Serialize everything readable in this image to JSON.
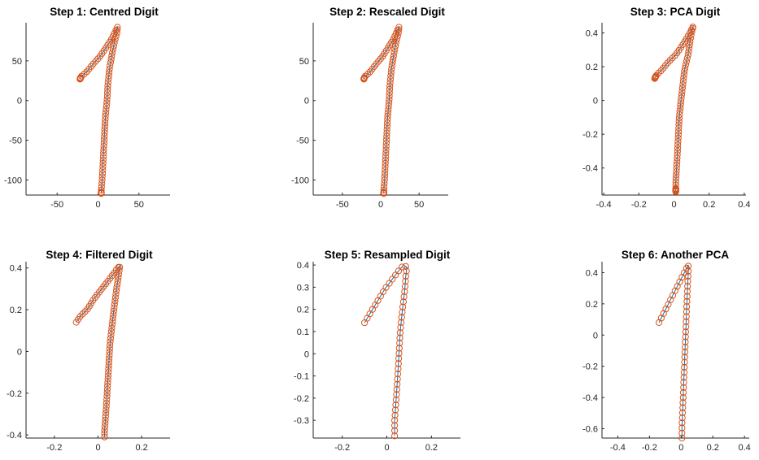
{
  "colors": {
    "marker": "#d95319",
    "line": "#0072bd",
    "axis": "#262626"
  },
  "chart_data": [
    {
      "type": "scatter",
      "title": "Step 1: Centred   Digit",
      "xlim": [
        -88,
        88
      ],
      "ylim": [
        -119,
        98
      ],
      "xticks": [
        -50,
        0,
        50
      ],
      "xtick_labels": [
        "-50",
        "0",
        "50"
      ],
      "yticks": [
        -100,
        -50,
        0,
        50
      ],
      "ytick_labels": [
        "-100",
        "-50",
        "0",
        "50"
      ],
      "grid": false,
      "stroke": [
        [
          -22,
          27
        ],
        [
          -21,
          30
        ],
        [
          -14,
          36
        ],
        [
          -6,
          46
        ],
        [
          2,
          55
        ],
        [
          10,
          67
        ],
        [
          17,
          78
        ],
        [
          22,
          89
        ],
        [
          24,
          93
        ],
        [
          23,
          85
        ],
        [
          20,
          73
        ],
        [
          17,
          58
        ],
        [
          14,
          40
        ],
        [
          12,
          20
        ],
        [
          11,
          0
        ],
        [
          9,
          -20
        ],
        [
          8,
          -40
        ],
        [
          7,
          -60
        ],
        [
          6,
          -80
        ],
        [
          5,
          -100
        ],
        [
          4,
          -112
        ],
        [
          4,
          -117
        ]
      ],
      "dense_start": true,
      "dense_end": true
    },
    {
      "type": "scatter",
      "title": "Step 2: Rescaled  Digit",
      "xlim": [
        -88,
        88
      ],
      "ylim": [
        -119,
        98
      ],
      "xticks": [
        -50,
        0,
        50
      ],
      "xtick_labels": [
        "-50",
        "0",
        "50"
      ],
      "yticks": [
        -100,
        -50,
        0,
        50
      ],
      "ytick_labels": [
        "-100",
        "-50",
        "0",
        "50"
      ],
      "grid": false,
      "stroke": [
        [
          -22,
          27
        ],
        [
          -21,
          30
        ],
        [
          -14,
          36
        ],
        [
          -6,
          46
        ],
        [
          2,
          55
        ],
        [
          10,
          67
        ],
        [
          17,
          78
        ],
        [
          22,
          89
        ],
        [
          24,
          93
        ],
        [
          23,
          85
        ],
        [
          20,
          73
        ],
        [
          17,
          58
        ],
        [
          14,
          40
        ],
        [
          12,
          20
        ],
        [
          11,
          0
        ],
        [
          9,
          -20
        ],
        [
          8,
          -40
        ],
        [
          7,
          -60
        ],
        [
          6,
          -80
        ],
        [
          5,
          -100
        ],
        [
          4,
          -112
        ],
        [
          4,
          -117
        ]
      ],
      "dense_start": true,
      "dense_end": true
    },
    {
      "type": "scatter",
      "title": "Step 3: PCA  Digit",
      "xlim": [
        -0.41,
        0.41
      ],
      "ylim": [
        -0.56,
        0.46
      ],
      "xticks": [
        -0.4,
        -0.2,
        0,
        0.2,
        0.4
      ],
      "xtick_labels": [
        "-0.4",
        "-0.2",
        "0",
        "0.2",
        "0.4"
      ],
      "yticks": [
        -0.4,
        -0.2,
        0,
        0.2,
        0.4
      ],
      "ytick_labels": [
        "-0.4",
        "-0.2",
        "0",
        "0.2",
        "0.4"
      ],
      "grid": false,
      "stroke": [
        [
          -0.11,
          0.13
        ],
        [
          -0.1,
          0.15
        ],
        [
          -0.07,
          0.18
        ],
        [
          -0.03,
          0.23
        ],
        [
          0.01,
          0.27
        ],
        [
          0.05,
          0.33
        ],
        [
          0.08,
          0.38
        ],
        [
          0.1,
          0.42
        ],
        [
          0.11,
          0.44
        ],
        [
          0.1,
          0.4
        ],
        [
          0.09,
          0.34
        ],
        [
          0.08,
          0.27
        ],
        [
          0.06,
          0.18
        ],
        [
          0.05,
          0.09
        ],
        [
          0.04,
          0
        ],
        [
          0.03,
          -0.1
        ],
        [
          0.025,
          -0.2
        ],
        [
          0.02,
          -0.3
        ],
        [
          0.015,
          -0.4
        ],
        [
          0.01,
          -0.48
        ],
        [
          0.01,
          -0.54
        ]
      ],
      "dense_start": true,
      "dense_end": true
    },
    {
      "type": "scatter",
      "title": "Step 4: Filtered  Digit",
      "xlim": [
        -0.33,
        0.33
      ],
      "ylim": [
        -0.415,
        0.43
      ],
      "xticks": [
        -0.2,
        0,
        0.2
      ],
      "xtick_labels": [
        "-0.2",
        "0",
        "0.2"
      ],
      "yticks": [
        -0.4,
        -0.2,
        0,
        0.2,
        0.4
      ],
      "ytick_labels": [
        "-0.4",
        "-0.2",
        "0",
        "0.2",
        "0.4"
      ],
      "grid": false,
      "stroke": [
        [
          -0.1,
          0.14
        ],
        [
          -0.08,
          0.17
        ],
        [
          -0.05,
          0.2
        ],
        [
          -0.02,
          0.25
        ],
        [
          0.01,
          0.29
        ],
        [
          0.04,
          0.33
        ],
        [
          0.07,
          0.37
        ],
        [
          0.09,
          0.4
        ],
        [
          0.1,
          0.41
        ],
        [
          0.095,
          0.37
        ],
        [
          0.085,
          0.3
        ],
        [
          0.075,
          0.22
        ],
        [
          0.065,
          0.13
        ],
        [
          0.055,
          0.04
        ],
        [
          0.05,
          -0.05
        ],
        [
          0.045,
          -0.14
        ],
        [
          0.04,
          -0.23
        ],
        [
          0.035,
          -0.31
        ],
        [
          0.03,
          -0.38
        ],
        [
          0.03,
          -0.41
        ]
      ],
      "dense_start": false,
      "dense_end": false
    },
    {
      "type": "scatter",
      "title": "Step 5: Resampled Digit",
      "xlim": [
        -0.33,
        0.33
      ],
      "ylim": [
        -0.38,
        0.415
      ],
      "xticks": [
        -0.2,
        0,
        0.2
      ],
      "xtick_labels": [
        "-0.2",
        "0",
        "0.2"
      ],
      "yticks": [
        -0.3,
        -0.2,
        -0.1,
        0,
        0.1,
        0.2,
        0.3,
        0.4
      ],
      "ytick_labels": [
        "-0.3",
        "-0.2",
        "-0.1",
        "0",
        "0.1",
        "0.2",
        "0.3",
        "0.4"
      ],
      "grid": false,
      "stroke": [
        [
          -0.1,
          0.14
        ],
        [
          -0.07,
          0.19
        ],
        [
          -0.04,
          0.24
        ],
        [
          -0.01,
          0.29
        ],
        [
          0.02,
          0.33
        ],
        [
          0.05,
          0.37
        ],
        [
          0.075,
          0.4
        ],
        [
          0.09,
          0.39
        ],
        [
          0.085,
          0.35
        ],
        [
          0.08,
          0.28
        ],
        [
          0.07,
          0.2
        ],
        [
          0.06,
          0.1
        ],
        [
          0.055,
          0.01
        ],
        [
          0.05,
          -0.08
        ],
        [
          0.045,
          -0.16
        ],
        [
          0.04,
          -0.23
        ],
        [
          0.035,
          -0.3
        ],
        [
          0.035,
          -0.37
        ]
      ],
      "dense_start": false,
      "dense_end": false
    },
    {
      "type": "scatter",
      "title": "Step 6: Another PCA",
      "xlim": [
        -0.5,
        0.43
      ],
      "ylim": [
        -0.66,
        0.47
      ],
      "xticks": [
        -0.4,
        -0.2,
        0,
        0.2,
        0.4
      ],
      "xtick_labels": [
        "-0.4",
        "-0.2",
        "0",
        "0.2",
        "0.4"
      ],
      "yticks": [
        -0.6,
        -0.4,
        -0.2,
        0,
        0.2,
        0.4
      ],
      "ytick_labels": [
        "-0.6",
        "-0.4",
        "-0.2",
        "0",
        "0.2",
        "0.4"
      ],
      "grid": false,
      "stroke": [
        [
          -0.14,
          0.08
        ],
        [
          -0.11,
          0.14
        ],
        [
          -0.08,
          0.2
        ],
        [
          -0.05,
          0.26
        ],
        [
          -0.02,
          0.32
        ],
        [
          0.01,
          0.38
        ],
        [
          0.035,
          0.43
        ],
        [
          0.045,
          0.45
        ],
        [
          0.045,
          0.4
        ],
        [
          0.04,
          0.3
        ],
        [
          0.035,
          0.18
        ],
        [
          0.03,
          0.05
        ],
        [
          0.025,
          -0.08
        ],
        [
          0.02,
          -0.21
        ],
        [
          0.015,
          -0.34
        ],
        [
          0.01,
          -0.47
        ],
        [
          0.005,
          -0.58
        ],
        [
          0.005,
          -0.66
        ]
      ],
      "dense_start": false,
      "dense_end": false
    }
  ]
}
